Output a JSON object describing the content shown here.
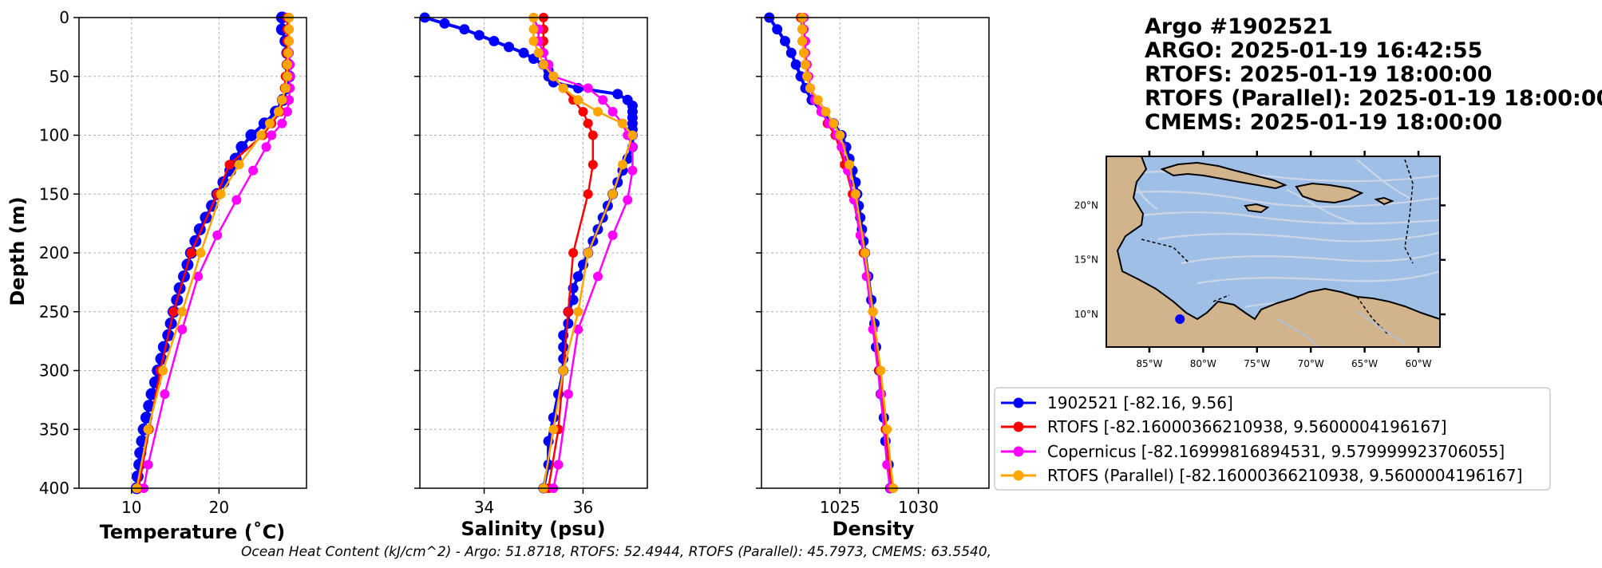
{
  "title_lines": [
    "Argo #1902521",
    "ARGO:  2025-01-19 16:42:55",
    "RTOFS: 2025-01-19 18:00:00",
    "RTOFS (Parallel): 2025-01-19 18:00:00",
    "CMEMS: 2025-01-19 18:00:00"
  ],
  "footer": "Ocean Heat Content (kJ/cm^2) - Argo: 51.8718,  RTOFS: 52.4944,  RTOFS (Parallel): 45.7973,  CMEMS: 63.5540,",
  "colors": {
    "argo": "#0000ff",
    "rtofs": "#ff0000",
    "copernicus": "#ff00ff",
    "rtofs_parallel": "#ffa500",
    "ocean": "#a0bfe6",
    "land": "#d2b48c",
    "grid": "#b0b0b0"
  },
  "chart_data": [
    {
      "type": "line",
      "xlabel": "Temperature (˚C)",
      "ylabel": "Depth (m)",
      "xlim": [
        4,
        30
      ],
      "ylim": [
        400,
        0
      ],
      "xticks": [
        "10",
        "20"
      ],
      "xtick_values": [
        10,
        20
      ],
      "yticks": [
        "0",
        "50",
        "100",
        "150",
        "200",
        "250",
        "300",
        "350",
        "400"
      ],
      "ytick_values": [
        0,
        50,
        100,
        150,
        200,
        250,
        300,
        350,
        400
      ],
      "grid": true,
      "series": [
        {
          "name": "1902521 [-82.16, 9.56]",
          "key": "argo",
          "depth": [
            0,
            10,
            20,
            30,
            40,
            50,
            60,
            70,
            80,
            90,
            100,
            110,
            120,
            130,
            140,
            150,
            160,
            170,
            180,
            190,
            200,
            210,
            220,
            230,
            240,
            250,
            260,
            270,
            280,
            290,
            300,
            310,
            320,
            330,
            340,
            350,
            360,
            370,
            380,
            390,
            400
          ],
          "values": [
            27.2,
            27.2,
            27.6,
            27.8,
            27.9,
            28.0,
            27.8,
            27.3,
            26.5,
            25.2,
            23.7,
            22.6,
            21.9,
            21.3,
            20.5,
            19.8,
            19.2,
            18.5,
            17.8,
            17.3,
            16.8,
            16.4,
            16.0,
            15.5,
            15.2,
            14.8,
            14.5,
            14.2,
            13.7,
            13.4,
            13.0,
            12.7,
            12.3,
            12.0,
            11.7,
            11.4,
            11.2,
            11.0,
            10.9,
            10.7,
            10.6
          ]
        },
        {
          "name": "RTOFS [-82.16000366210938, 9.5600004196167]",
          "key": "rtofs",
          "depth": [
            0,
            10,
            20,
            30,
            40,
            50,
            60,
            70,
            80,
            90,
            100,
            125,
            150,
            200,
            250,
            300,
            350,
            400
          ],
          "values": [
            27.8,
            27.8,
            27.8,
            27.7,
            27.7,
            27.6,
            27.5,
            27.3,
            27.0,
            26.0,
            25.0,
            21.2,
            19.8,
            16.8,
            14.8,
            13.3,
            12.0,
            10.8
          ]
        },
        {
          "name": "Copernicus [-82.16999816894531, 9.579999923706055]",
          "key": "copernicus",
          "depth": [
            0,
            10,
            20,
            30,
            40,
            50,
            60,
            70,
            80,
            90,
            100,
            110,
            130,
            155,
            185,
            220,
            265,
            320,
            380,
            400
          ],
          "values": [
            28.0,
            28.0,
            28.0,
            28.0,
            28.1,
            28.1,
            28.1,
            28.0,
            27.8,
            27.2,
            26.0,
            25.4,
            23.9,
            22.0,
            19.8,
            17.6,
            15.8,
            13.8,
            11.9,
            11.4
          ]
        },
        {
          "name": "RTOFS (Parallel) [-82.16000366210938, 9.5600004196167]",
          "key": "rtofs_parallel",
          "depth": [
            0,
            10,
            20,
            30,
            40,
            50,
            60,
            70,
            80,
            90,
            100,
            125,
            150,
            200,
            250,
            300,
            350,
            400
          ],
          "values": [
            28.0,
            28.0,
            28.0,
            27.9,
            27.8,
            27.8,
            27.6,
            27.2,
            26.8,
            25.8,
            24.8,
            22.3,
            20.2,
            17.9,
            15.8,
            13.6,
            11.9,
            10.6
          ]
        }
      ]
    },
    {
      "type": "line",
      "xlabel": "Salinity (psu)",
      "xlim": [
        32.7,
        37.3
      ],
      "ylim": [
        400,
        0
      ],
      "xticks": [
        "34",
        "36"
      ],
      "xtick_values": [
        34,
        36
      ],
      "grid": true,
      "series": [
        {
          "name": "1902521 [-82.16, 9.56]",
          "key": "argo",
          "depth": [
            0,
            5,
            10,
            15,
            20,
            25,
            30,
            35,
            40,
            45,
            50,
            55,
            60,
            65,
            70,
            75,
            80,
            85,
            90,
            95,
            100,
            110,
            120,
            130,
            140,
            150,
            160,
            170,
            180,
            190,
            200,
            210,
            220,
            230,
            240,
            250,
            260,
            270,
            280,
            290,
            300,
            320,
            340,
            360,
            380,
            400
          ],
          "values": [
            32.8,
            33.2,
            33.6,
            33.9,
            34.2,
            34.5,
            34.8,
            35.0,
            35.2,
            35.3,
            35.3,
            35.4,
            35.9,
            36.7,
            36.9,
            37.0,
            37.0,
            37.0,
            37.0,
            37.0,
            37.0,
            37.0,
            36.9,
            36.8,
            36.7,
            36.6,
            36.5,
            36.4,
            36.3,
            36.2,
            36.1,
            36.0,
            35.9,
            35.8,
            35.8,
            35.7,
            35.7,
            35.6,
            35.6,
            35.6,
            35.6,
            35.5,
            35.4,
            35.3,
            35.3,
            35.2
          ]
        },
        {
          "name": "RTOFS [-82.16000366210938, 9.5600004196167]",
          "key": "rtofs",
          "depth": [
            0,
            10,
            20,
            30,
            40,
            50,
            60,
            70,
            80,
            90,
            100,
            125,
            150,
            200,
            250,
            300,
            350,
            400
          ],
          "values": [
            35.2,
            35.2,
            35.2,
            35.2,
            35.3,
            35.4,
            35.6,
            35.8,
            36.0,
            36.1,
            36.2,
            36.2,
            36.1,
            35.8,
            35.7,
            35.6,
            35.5,
            35.3
          ]
        },
        {
          "name": "Copernicus [-82.16999816894531, 9.579999923706055]",
          "key": "copernicus",
          "depth": [
            0,
            10,
            20,
            30,
            40,
            50,
            60,
            70,
            80,
            90,
            100,
            110,
            130,
            155,
            185,
            220,
            265,
            320,
            380,
            400
          ],
          "values": [
            35.0,
            35.1,
            35.1,
            35.2,
            35.3,
            35.4,
            36.1,
            36.4,
            36.6,
            36.8,
            36.9,
            37.0,
            37.0,
            36.9,
            36.6,
            36.3,
            35.9,
            35.7,
            35.5,
            35.4
          ]
        },
        {
          "name": "RTOFS (Parallel) [-82.16000366210938, 9.5600004196167]",
          "key": "rtofs_parallel",
          "depth": [
            0,
            10,
            20,
            30,
            40,
            50,
            60,
            70,
            80,
            90,
            100,
            125,
            150,
            200,
            250,
            300,
            350,
            400
          ],
          "values": [
            35.0,
            35.0,
            35.0,
            35.1,
            35.2,
            35.4,
            35.6,
            35.9,
            36.3,
            36.8,
            37.0,
            36.8,
            36.6,
            36.1,
            35.9,
            35.6,
            35.4,
            35.2
          ]
        }
      ]
    },
    {
      "type": "line",
      "xlabel": "Density",
      "xlim": [
        1020,
        1034.5
      ],
      "ylim": [
        400,
        0
      ],
      "xticks": [
        "1025",
        "1030"
      ],
      "xtick_values": [
        1025,
        1030
      ],
      "grid": true,
      "series": [
        {
          "name": "1902521 [-82.16, 9.56]",
          "key": "argo",
          "depth": [
            0,
            10,
            20,
            30,
            40,
            50,
            60,
            70,
            80,
            90,
            100,
            110,
            120,
            130,
            140,
            150,
            160,
            170,
            180,
            190,
            200,
            220,
            240,
            260,
            280,
            300,
            320,
            340,
            360,
            380,
            400
          ],
          "values": [
            1020.5,
            1021.0,
            1021.5,
            1021.9,
            1022.2,
            1022.5,
            1022.8,
            1023.2,
            1023.9,
            1024.6,
            1025.1,
            1025.4,
            1025.6,
            1025.8,
            1026.0,
            1026.1,
            1026.2,
            1026.3,
            1026.4,
            1026.5,
            1026.6,
            1026.8,
            1027.0,
            1027.2,
            1027.3,
            1027.5,
            1027.6,
            1027.8,
            1027.9,
            1028.1,
            1028.2
          ]
        },
        {
          "name": "RTOFS [-82.16000366210938, 9.5600004196167]",
          "key": "rtofs",
          "depth": [
            0,
            10,
            20,
            30,
            40,
            50,
            60,
            70,
            80,
            90,
            100,
            125,
            150,
            200,
            250,
            300,
            350,
            400
          ],
          "values": [
            1022.5,
            1022.6,
            1022.6,
            1022.7,
            1022.8,
            1022.9,
            1023.1,
            1023.4,
            1023.9,
            1024.2,
            1024.7,
            1025.3,
            1025.8,
            1026.5,
            1027.1,
            1027.5,
            1027.9,
            1028.3
          ]
        },
        {
          "name": "Copernicus [-82.16999816894531, 9.579999923706055]",
          "key": "copernicus",
          "depth": [
            0,
            10,
            20,
            30,
            40,
            50,
            60,
            70,
            80,
            90,
            100,
            110,
            130,
            155,
            185,
            220,
            265,
            320,
            380,
            400
          ],
          "values": [
            1022.7,
            1022.7,
            1022.8,
            1022.8,
            1022.9,
            1023.0,
            1023.1,
            1023.4,
            1023.8,
            1024.3,
            1024.8,
            1025.1,
            1025.5,
            1025.9,
            1026.3,
            1026.7,
            1027.1,
            1027.6,
            1028.0,
            1028.2
          ]
        },
        {
          "name": "RTOFS (Parallel) [-82.16000366210938, 9.5600004196167]",
          "key": "rtofs_parallel",
          "depth": [
            0,
            10,
            20,
            30,
            40,
            50,
            60,
            70,
            80,
            90,
            100,
            125,
            150,
            200,
            250,
            300,
            350,
            400
          ],
          "values": [
            1022.6,
            1022.6,
            1022.6,
            1022.7,
            1022.8,
            1022.9,
            1023.1,
            1023.6,
            1024.1,
            1024.6,
            1025.0,
            1025.6,
            1026.0,
            1026.6,
            1027.1,
            1027.6,
            1028.0,
            1028.4
          ]
        }
      ]
    }
  ],
  "map": {
    "lon_range": [
      -89,
      -58
    ],
    "lat_range": [
      7,
      24.5
    ],
    "x_ticks": [
      "85°W",
      "80°W",
      "75°W",
      "70°W",
      "65°W",
      "60°W"
    ],
    "x_tick_values": [
      -85,
      -80,
      -75,
      -70,
      -65,
      -60
    ],
    "y_ticks": [
      "20°N",
      "15°N",
      "10°N"
    ],
    "y_tick_values": [
      20,
      15,
      10
    ],
    "marker": {
      "lon": -82.16,
      "lat": 9.56
    }
  },
  "legend": [
    {
      "key": "argo",
      "label": "1902521 [-82.16, 9.56]"
    },
    {
      "key": "rtofs",
      "label": "RTOFS [-82.16000366210938, 9.5600004196167]"
    },
    {
      "key": "copernicus",
      "label": "Copernicus [-82.16999816894531, 9.579999923706055]"
    },
    {
      "key": "rtofs_parallel",
      "label": "RTOFS (Parallel) [-82.16000366210938, 9.5600004196167]"
    }
  ]
}
